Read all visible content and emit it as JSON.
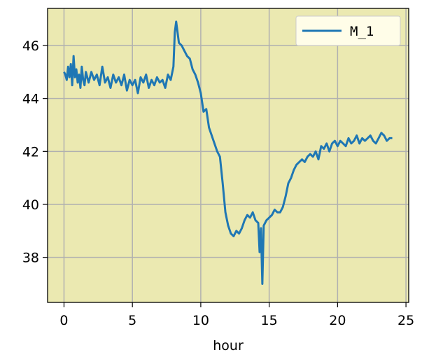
{
  "chart_data": {
    "type": "line",
    "title": "",
    "xlabel": "hour",
    "ylabel": "",
    "xlim": [
      -1.2,
      25.2
    ],
    "ylim": [
      36.3,
      47.4
    ],
    "xticks": [
      0,
      5,
      10,
      15,
      20,
      25
    ],
    "yticks": [
      38,
      40,
      42,
      44,
      46
    ],
    "grid": true,
    "legend_position": "top-right",
    "colors": {
      "plot_background": "#ebe9b1",
      "series": "#1f77b4",
      "grid": "#b0b0b0"
    },
    "series": [
      {
        "name": "M_1",
        "x": [
          0,
          0.1,
          0.2,
          0.3,
          0.4,
          0.5,
          0.6,
          0.7,
          0.8,
          0.9,
          1.0,
          1.1,
          1.2,
          1.3,
          1.4,
          1.5,
          1.6,
          1.7,
          1.8,
          2.0,
          2.2,
          2.4,
          2.6,
          2.8,
          3.0,
          3.2,
          3.4,
          3.6,
          3.8,
          4.0,
          4.2,
          4.4,
          4.6,
          4.8,
          5.0,
          5.2,
          5.4,
          5.6,
          5.8,
          6.0,
          6.2,
          6.4,
          6.6,
          6.8,
          7.0,
          7.2,
          7.4,
          7.6,
          7.8,
          8.0,
          8.1,
          8.2,
          8.3,
          8.4,
          8.6,
          8.8,
          9.0,
          9.2,
          9.4,
          9.6,
          9.8,
          10.0,
          10.2,
          10.4,
          10.6,
          10.8,
          11.0,
          11.2,
          11.4,
          11.6,
          11.8,
          12.0,
          12.2,
          12.4,
          12.6,
          12.8,
          13.0,
          13.2,
          13.4,
          13.6,
          13.8,
          14.0,
          14.2,
          14.3,
          14.4,
          14.5,
          14.6,
          14.8,
          15.0,
          15.2,
          15.4,
          15.6,
          15.8,
          16.0,
          16.2,
          16.4,
          16.6,
          16.8,
          17.0,
          17.2,
          17.4,
          17.6,
          17.8,
          18.0,
          18.2,
          18.4,
          18.6,
          18.8,
          19.0,
          19.2,
          19.4,
          19.6,
          19.8,
          20.0,
          20.2,
          20.4,
          20.6,
          20.8,
          21.0,
          21.2,
          21.4,
          21.6,
          21.8,
          22.0,
          22.2,
          22.4,
          22.6,
          22.8,
          23.0,
          23.2,
          23.4,
          23.6,
          23.8,
          24.0
        ],
        "y": [
          45.0,
          44.9,
          44.7,
          45.2,
          44.8,
          45.3,
          44.5,
          45.6,
          44.8,
          45.1,
          44.6,
          44.9,
          44.4,
          45.2,
          44.7,
          44.5,
          45.0,
          44.8,
          44.6,
          45.0,
          44.7,
          44.9,
          44.5,
          45.2,
          44.6,
          44.8,
          44.4,
          44.9,
          44.6,
          44.8,
          44.5,
          44.9,
          44.3,
          44.7,
          44.5,
          44.7,
          44.2,
          44.8,
          44.6,
          44.9,
          44.4,
          44.7,
          44.5,
          44.8,
          44.6,
          44.7,
          44.4,
          44.9,
          44.7,
          45.2,
          46.5,
          46.9,
          46.5,
          46.1,
          46.0,
          45.8,
          45.6,
          45.5,
          45.1,
          44.9,
          44.6,
          44.2,
          43.5,
          43.6,
          42.9,
          42.6,
          42.3,
          42.0,
          41.8,
          40.8,
          39.7,
          39.2,
          38.9,
          38.8,
          39.0,
          38.9,
          39.1,
          39.4,
          39.6,
          39.5,
          39.7,
          39.4,
          39.3,
          38.2,
          39.1,
          37.0,
          39.2,
          39.4,
          39.5,
          39.6,
          39.8,
          39.7,
          39.7,
          39.9,
          40.3,
          40.8,
          41.0,
          41.3,
          41.5,
          41.6,
          41.7,
          41.6,
          41.8,
          41.9,
          41.8,
          42.0,
          41.7,
          42.2,
          42.1,
          42.3,
          42.0,
          42.3,
          42.4,
          42.2,
          42.4,
          42.3,
          42.2,
          42.5,
          42.3,
          42.4,
          42.6,
          42.3,
          42.5,
          42.4,
          42.5,
          42.6,
          42.4,
          42.3,
          42.5,
          42.7,
          42.6,
          42.4,
          42.5,
          42.5
        ]
      }
    ]
  }
}
